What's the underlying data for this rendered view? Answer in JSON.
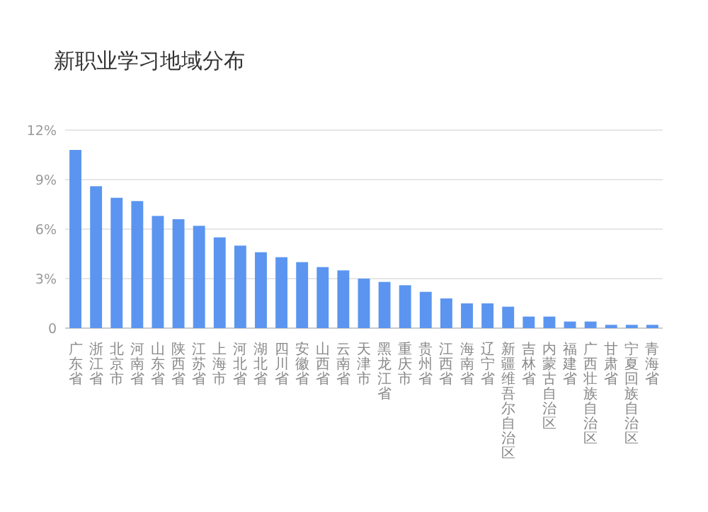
{
  "chart_data": {
    "type": "bar",
    "title": "新职业学习地域分布",
    "categories": [
      "广东省",
      "浙江省",
      "北京市",
      "河南省",
      "山东省",
      "陕西省",
      "江苏省",
      "上海市",
      "河北省",
      "湖北省",
      "四川省",
      "安徽省",
      "山西省",
      "云南省",
      "天津市",
      "黑龙江省",
      "重庆市",
      "贵州省",
      "江西省",
      "海南省",
      "辽宁省",
      "新疆维吾尔自治区",
      "吉林省",
      "内蒙古自治区",
      "福建省",
      "广西壮族自治区",
      "甘肃省",
      "宁夏回族自治区",
      "青海省"
    ],
    "values": [
      10.8,
      8.6,
      7.9,
      7.7,
      6.8,
      6.6,
      6.2,
      5.5,
      5.0,
      4.6,
      4.3,
      4.0,
      3.7,
      3.5,
      3.0,
      2.8,
      2.6,
      2.2,
      1.8,
      1.5,
      1.5,
      1.3,
      0.7,
      0.7,
      0.4,
      0.4,
      0.2,
      0.2,
      0.2
    ],
    "color": "#5b95f0",
    "ylim": [
      0,
      12
    ],
    "yticks": [
      0,
      {
        "value": 3,
        "label": "3%"
      },
      {
        "value": 6,
        "label": "6%"
      },
      {
        "value": 9,
        "label": "9%"
      },
      {
        "value": 12,
        "label": "12%"
      }
    ],
    "grid": "y"
  }
}
